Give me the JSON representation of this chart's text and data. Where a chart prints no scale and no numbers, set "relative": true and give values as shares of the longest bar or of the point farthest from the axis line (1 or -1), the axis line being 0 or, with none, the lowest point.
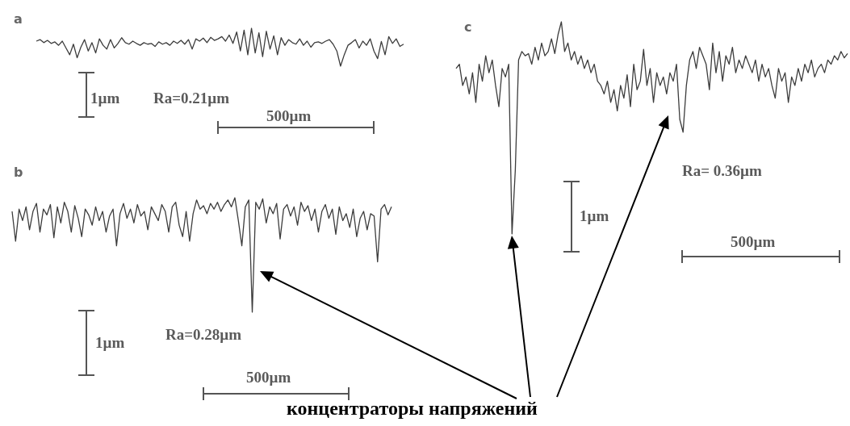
{
  "chart_data": [
    {
      "type": "line",
      "title": "a",
      "relative": true,
      "categories": [
        null,
        null,
        null,
        null,
        null,
        null,
        null,
        null,
        null,
        null,
        null,
        null,
        null,
        null,
        null,
        null,
        null,
        null,
        null,
        null,
        null,
        null,
        null,
        null,
        null,
        null,
        null,
        null,
        null,
        null,
        null,
        null,
        null,
        null,
        null,
        null,
        null,
        null,
        null,
        null,
        null,
        null,
        null,
        null,
        null,
        null,
        null,
        null,
        null,
        null,
        null,
        null,
        null,
        null,
        null,
        null,
        null,
        null,
        null,
        null,
        null,
        null,
        null,
        null,
        null,
        null,
        null,
        null,
        null,
        null,
        null,
        null,
        null,
        null,
        null,
        null,
        null,
        null,
        null,
        null,
        null,
        null,
        null,
        null,
        null,
        null,
        null,
        null,
        null,
        null,
        null,
        null,
        null,
        null,
        null,
        null,
        null,
        null,
        null,
        null
      ],
      "series": [
        {
          "color": "#3c3c3c",
          "values": [
            0.66,
            0.7,
            0.62,
            0.68,
            0.6,
            0.64,
            0.55,
            0.66,
            0.48,
            0.3,
            0.58,
            0.22,
            0.5,
            0.7,
            0.4,
            0.62,
            0.35,
            0.72,
            0.55,
            0.45,
            0.7,
            0.48,
            0.6,
            0.75,
            0.62,
            0.58,
            0.66,
            0.6,
            0.55,
            0.62,
            0.58,
            0.6,
            0.52,
            0.64,
            0.58,
            0.62,
            0.55,
            0.66,
            0.6,
            0.68,
            0.58,
            0.7,
            0.45,
            0.72,
            0.66,
            0.74,
            0.62,
            0.76,
            0.68,
            0.72,
            0.78,
            0.66,
            0.82,
            0.6,
            0.9,
            0.4,
            0.95,
            0.3,
            1.0,
            0.35,
            0.88,
            0.25,
            0.92,
            0.45,
            0.8,
            0.3,
            0.75,
            0.55,
            0.7,
            0.62,
            0.58,
            0.72,
            0.55,
            0.66,
            0.5,
            0.62,
            0.64,
            0.6,
            0.66,
            0.7,
            0.58,
            0.4,
            0.0,
            0.3,
            0.55,
            0.62,
            0.7,
            0.48,
            0.66,
            0.55,
            0.72,
            0.4,
            0.2,
            0.65,
            0.3,
            0.78,
            0.6,
            0.72,
            0.52,
            0.58
          ]
        }
      ],
      "annotations": [
        "1µm",
        "Ra=0.21µm",
        "500µm"
      ]
    },
    {
      "type": "line",
      "title": "b",
      "relative": true,
      "categories": [
        null,
        null,
        null,
        null,
        null,
        null,
        null,
        null,
        null,
        null,
        null,
        null,
        null,
        null,
        null,
        null,
        null,
        null,
        null,
        null,
        null,
        null,
        null,
        null,
        null,
        null,
        null,
        null,
        null,
        null,
        null,
        null,
        null,
        null,
        null,
        null,
        null,
        null,
        null,
        null,
        null,
        null,
        null,
        null,
        null,
        null,
        null,
        null,
        null,
        null,
        null,
        null,
        null,
        null,
        null,
        null,
        null,
        null,
        null,
        null,
        null,
        null,
        null,
        null,
        null,
        null,
        null,
        null,
        null,
        null,
        null,
        null,
        null,
        null,
        null,
        null,
        null,
        null,
        null,
        null,
        null,
        null,
        null,
        null,
        null,
        null,
        null,
        null,
        null,
        null,
        null,
        null,
        null,
        null,
        null,
        null,
        null,
        null,
        null,
        null,
        null,
        null,
        null,
        null,
        null,
        null,
        null,
        null,
        null,
        null
      ],
      "series": [
        {
          "color": "#3c3c3c",
          "values": [
            0.88,
            0.62,
            0.9,
            0.8,
            0.92,
            0.72,
            0.88,
            0.95,
            0.7,
            0.9,
            0.85,
            0.94,
            0.65,
            0.92,
            0.78,
            0.96,
            0.88,
            0.7,
            0.93,
            0.82,
            0.66,
            0.9,
            0.85,
            0.76,
            0.92,
            0.8,
            0.88,
            0.7,
            0.84,
            0.9,
            0.58,
            0.86,
            0.95,
            0.82,
            0.9,
            0.78,
            0.94,
            0.84,
            0.88,
            0.72,
            0.92,
            0.86,
            0.8,
            0.94,
            0.88,
            0.7,
            0.92,
            0.96,
            0.76,
            0.66,
            0.88,
            0.62,
            0.86,
            0.98,
            0.9,
            0.93,
            0.86,
            0.95,
            0.9,
            0.96,
            0.88,
            0.94,
            0.98,
            0.92,
            1.0,
            0.8,
            0.58,
            0.92,
            0.98,
            0.0,
            0.96,
            0.9,
            0.99,
            0.78,
            0.92,
            0.86,
            0.95,
            0.64,
            0.9,
            0.94,
            0.84,
            0.92,
            0.76,
            0.96,
            0.88,
            0.93,
            0.8,
            0.9,
            0.7,
            0.88,
            0.94,
            0.82,
            0.9,
            0.68,
            0.92,
            0.8,
            0.86,
            0.74,
            0.9,
            0.66,
            0.82,
            0.88,
            0.72,
            0.86,
            0.84,
            0.44,
            0.9,
            0.94,
            0.85,
            0.92
          ]
        }
      ],
      "annotations": [
        "1µm",
        "Ra=0.28µm",
        "500µm"
      ]
    },
    {
      "type": "line",
      "title": "c",
      "relative": true,
      "categories": [
        null,
        null,
        null,
        null,
        null,
        null,
        null,
        null,
        null,
        null,
        null,
        null,
        null,
        null,
        null,
        null,
        null,
        null,
        null,
        null,
        null,
        null,
        null,
        null,
        null,
        null,
        null,
        null,
        null,
        null,
        null,
        null,
        null,
        null,
        null,
        null,
        null,
        null,
        null,
        null,
        null,
        null,
        null,
        null,
        null,
        null,
        null,
        null,
        null,
        null,
        null,
        null,
        null,
        null,
        null,
        null,
        null,
        null,
        null,
        null,
        null,
        null,
        null,
        null,
        null,
        null,
        null,
        null,
        null,
        null,
        null,
        null,
        null,
        null,
        null,
        null,
        null,
        null,
        null,
        null,
        null,
        null,
        null,
        null,
        null,
        null,
        null,
        null,
        null,
        null,
        null,
        null,
        null,
        null,
        null,
        null,
        null,
        null,
        null,
        null,
        null,
        null,
        null,
        null,
        null,
        null,
        null,
        null,
        null,
        null,
        null,
        null,
        null,
        null,
        null,
        null,
        null,
        null,
        null,
        null
      ],
      "series": [
        {
          "color": "#3c3c3c",
          "values": [
            0.78,
            0.8,
            0.7,
            0.74,
            0.66,
            0.76,
            0.62,
            0.8,
            0.72,
            0.84,
            0.76,
            0.82,
            0.7,
            0.6,
            0.78,
            0.74,
            0.8,
            0.0,
            0.3,
            0.82,
            0.86,
            0.84,
            0.85,
            0.8,
            0.88,
            0.82,
            0.9,
            0.84,
            0.86,
            0.92,
            0.85,
            0.94,
            1.0,
            0.86,
            0.9,
            0.82,
            0.86,
            0.8,
            0.84,
            0.78,
            0.82,
            0.76,
            0.8,
            0.72,
            0.7,
            0.66,
            0.72,
            0.62,
            0.68,
            0.58,
            0.7,
            0.64,
            0.75,
            0.6,
            0.8,
            0.68,
            0.72,
            0.87,
            0.7,
            0.78,
            0.62,
            0.76,
            0.7,
            0.74,
            0.66,
            0.76,
            0.72,
            0.8,
            0.54,
            0.48,
            0.7,
            0.82,
            0.86,
            0.78,
            0.88,
            0.84,
            0.8,
            0.68,
            0.9,
            0.76,
            0.86,
            0.72,
            0.84,
            0.8,
            0.88,
            0.76,
            0.82,
            0.78,
            0.84,
            0.8,
            0.76,
            0.82,
            0.72,
            0.8,
            0.74,
            0.78,
            0.7,
            0.64,
            0.78,
            0.72,
            0.76,
            0.62,
            0.74,
            0.7,
            0.78,
            0.72,
            0.8,
            0.76,
            0.82,
            0.74,
            0.78,
            0.8,
            0.76,
            0.82,
            0.8,
            0.84,
            0.82,
            0.86,
            0.83,
            0.85
          ]
        }
      ],
      "annotations": [
        "1µm",
        "Ra= 0.36µm",
        "500µm",
        "концентраторы напряжений"
      ]
    }
  ]
}
